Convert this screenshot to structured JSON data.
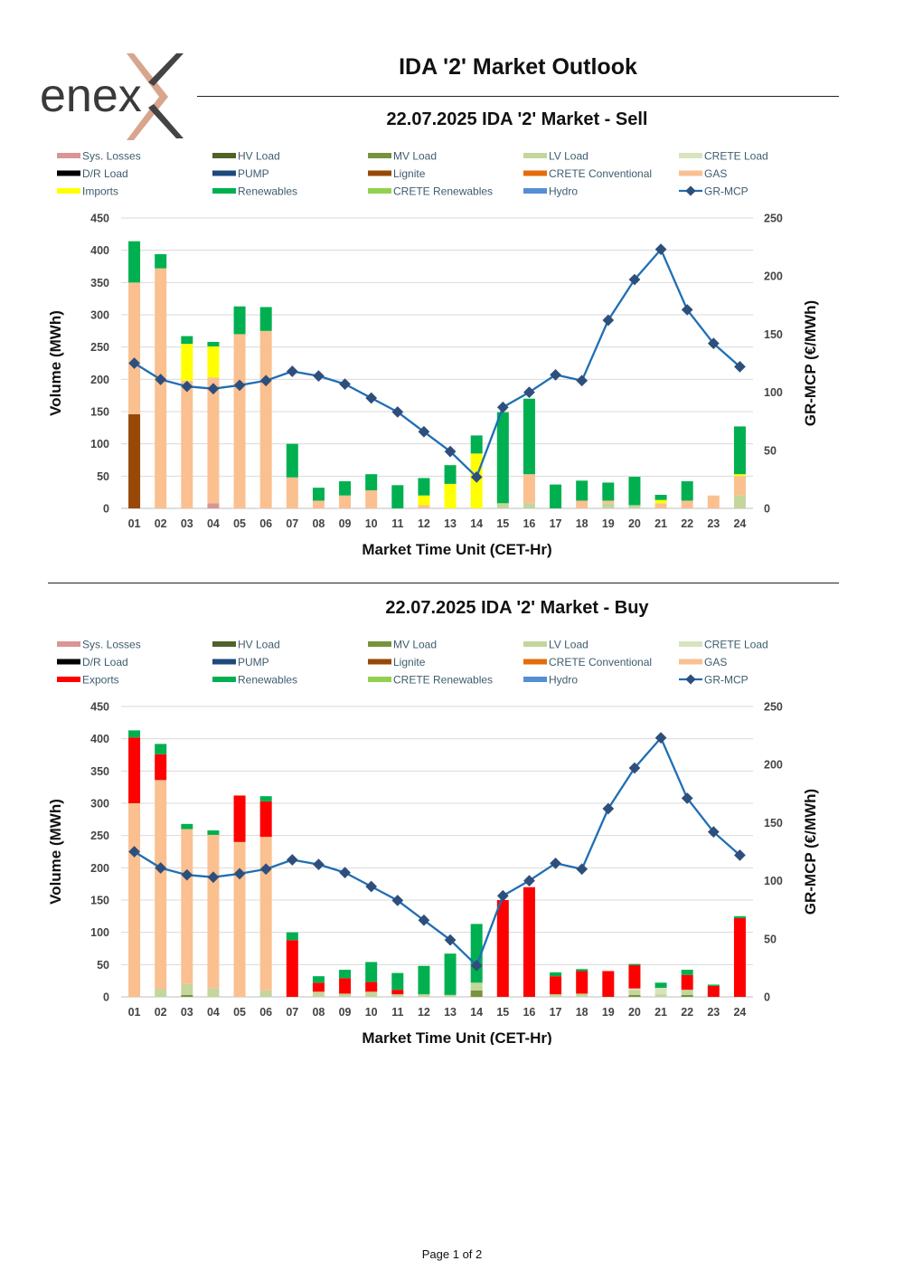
{
  "header": {
    "logo_text": "enex",
    "title": "IDA '2' Market Outlook"
  },
  "footer": {
    "page_label": "Page 1 of 2"
  },
  "legend_colors": {
    "Sys. Losses": "#d99694",
    "HV Load": "#4f6228",
    "MV Load": "#77933c",
    "LV Load": "#c3d69b",
    "CRETE Load": "#d7e4bd",
    "D/R Load": "#000000",
    "PUMP": "#1f497d",
    "Lignite": "#984807",
    "CRETE Conventional": "#e46c0a",
    "GAS": "#fac090",
    "Imports": "#ffff00",
    "Exports": "#ff0000",
    "Renewables": "#00b050",
    "CRETE Renewables": "#92d050",
    "Hydro": "#558ed5",
    "GR-MCP": "#1f6eb5"
  },
  "chart_data": [
    {
      "type": "bar",
      "title": "22.07.2025  IDA '2' Market - Sell",
      "xlabel": "Market Time Unit (CET-Hr)",
      "ylabel": "Volume (MWh)",
      "y2label": "GR-MCP (€/MWh)",
      "ylim": [
        0,
        450
      ],
      "y2lim": [
        0,
        250
      ],
      "yticks": [
        0,
        50,
        100,
        150,
        200,
        250,
        300,
        350,
        400,
        450
      ],
      "y2ticks": [
        0,
        50,
        100,
        150,
        200,
        250
      ],
      "legend": [
        "Sys. Losses",
        "HV Load",
        "MV Load",
        "LV Load",
        "CRETE Load",
        "D/R Load",
        "PUMP",
        "Lignite",
        "CRETE Conventional",
        "GAS",
        "Imports",
        "Renewables",
        "CRETE Renewables",
        "Hydro",
        "GR-MCP"
      ],
      "categories": [
        "01",
        "02",
        "03",
        "04",
        "05",
        "06",
        "07",
        "08",
        "09",
        "10",
        "11",
        "12",
        "13",
        "14",
        "15",
        "16",
        "17",
        "18",
        "19",
        "20",
        "21",
        "22",
        "23",
        "24"
      ],
      "series": [
        {
          "name": "Lignite",
          "values": [
            146,
            0,
            0,
            0,
            0,
            0,
            0,
            0,
            0,
            0,
            0,
            0,
            0,
            0,
            0,
            0,
            0,
            0,
            0,
            0,
            0,
            0,
            0,
            0
          ]
        },
        {
          "name": "LV Load",
          "values": [
            0,
            0,
            0,
            0,
            0,
            0,
            0,
            0,
            0,
            0,
            0,
            0,
            0,
            0,
            8,
            8,
            0,
            0,
            8,
            5,
            0,
            0,
            0,
            20
          ]
        },
        {
          "name": "Sys. Losses",
          "values": [
            0,
            0,
            0,
            8,
            0,
            0,
            0,
            0,
            0,
            0,
            0,
            0,
            0,
            0,
            0,
            0,
            0,
            0,
            0,
            0,
            0,
            0,
            0,
            0
          ]
        },
        {
          "name": "GAS",
          "values": [
            204,
            372,
            198,
            195,
            270,
            275,
            48,
            12,
            20,
            28,
            0,
            5,
            0,
            0,
            0,
            45,
            0,
            12,
            4,
            0,
            8,
            12,
            20,
            30
          ]
        },
        {
          "name": "Imports",
          "values": [
            0,
            0,
            57,
            48,
            0,
            0,
            0,
            0,
            0,
            0,
            0,
            15,
            38,
            85,
            0,
            0,
            0,
            0,
            0,
            0,
            5,
            0,
            0,
            3
          ]
        },
        {
          "name": "Renewables",
          "values": [
            64,
            22,
            12,
            7,
            43,
            37,
            52,
            20,
            22,
            25,
            36,
            27,
            29,
            28,
            141,
            117,
            37,
            31,
            28,
            44,
            8,
            30,
            0,
            74
          ]
        }
      ],
      "line": {
        "name": "GR-MCP",
        "values": [
          125,
          111,
          105,
          103,
          106,
          110,
          118,
          114,
          107,
          95,
          83,
          66,
          49,
          27,
          87,
          100,
          115,
          110,
          162,
          197,
          223,
          171,
          142,
          122
        ]
      }
    },
    {
      "type": "bar",
      "title": "22.07.2025  IDA '2' Market - Buy",
      "xlabel": "Market Time Unit (CET-Hr)",
      "ylabel": "Volume (MWh)",
      "y2label": "GR-MCP (€/MWh)",
      "ylim": [
        0,
        450
      ],
      "y2lim": [
        0,
        250
      ],
      "yticks": [
        0,
        50,
        100,
        150,
        200,
        250,
        300,
        350,
        400,
        450
      ],
      "y2ticks": [
        0,
        50,
        100,
        150,
        200,
        250
      ],
      "legend": [
        "Sys. Losses",
        "HV Load",
        "MV Load",
        "LV Load",
        "CRETE Load",
        "D/R Load",
        "PUMP",
        "Lignite",
        "CRETE Conventional",
        "GAS",
        "Exports",
        "Renewables",
        "CRETE Renewables",
        "Hydro",
        "GR-MCP"
      ],
      "categories": [
        "01",
        "02",
        "03",
        "04",
        "05",
        "06",
        "07",
        "08",
        "09",
        "10",
        "11",
        "12",
        "13",
        "14",
        "15",
        "16",
        "17",
        "18",
        "19",
        "20",
        "21",
        "22",
        "23",
        "24"
      ],
      "series": [
        {
          "name": "MV Load",
          "values": [
            0,
            0,
            3,
            0,
            0,
            0,
            0,
            0,
            0,
            0,
            0,
            0,
            0,
            10,
            0,
            0,
            0,
            0,
            0,
            3,
            0,
            3,
            0,
            0
          ]
        },
        {
          "name": "LV Load",
          "values": [
            0,
            12,
            17,
            13,
            0,
            10,
            0,
            8,
            5,
            8,
            4,
            4,
            3,
            12,
            0,
            0,
            4,
            5,
            0,
            8,
            4,
            8,
            0,
            0
          ]
        },
        {
          "name": "CRETE Load",
          "values": [
            0,
            0,
            0,
            0,
            0,
            0,
            0,
            0,
            0,
            0,
            0,
            0,
            0,
            0,
            0,
            0,
            0,
            0,
            0,
            2,
            10,
            0,
            0,
            0
          ]
        },
        {
          "name": "GAS",
          "values": [
            300,
            324,
            240,
            238,
            240,
            238,
            0,
            0,
            0,
            0,
            0,
            0,
            0,
            0,
            0,
            0,
            0,
            0,
            0,
            0,
            0,
            0,
            0,
            0
          ]
        },
        {
          "name": "Exports",
          "values": [
            102,
            40,
            0,
            0,
            72,
            55,
            88,
            14,
            24,
            15,
            7,
            0,
            0,
            0,
            150,
            170,
            28,
            35,
            40,
            36,
            0,
            23,
            17,
            122
          ]
        },
        {
          "name": "Renewables",
          "values": [
            11,
            16,
            8,
            7,
            0,
            8,
            12,
            10,
            13,
            31,
            26,
            44,
            64,
            91,
            0,
            0,
            6,
            3,
            0,
            2,
            8,
            8,
            2,
            3
          ]
        }
      ],
      "line": {
        "name": "GR-MCP",
        "values": [
          125,
          111,
          105,
          103,
          106,
          110,
          118,
          114,
          107,
          95,
          83,
          66,
          49,
          27,
          87,
          100,
          115,
          110,
          162,
          197,
          223,
          171,
          142,
          122
        ]
      }
    }
  ]
}
